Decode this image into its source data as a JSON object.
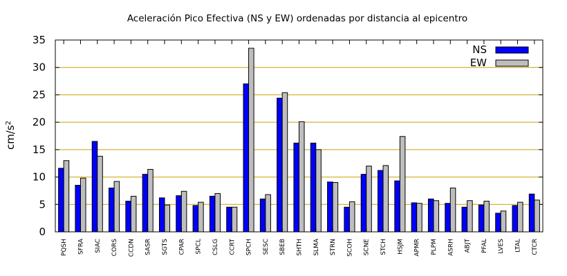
{
  "chart_data": {
    "type": "bar",
    "title": "Aceleración Pico Efectiva (NS y EW) ordenadas por distancia al epicentro",
    "xlabel": "",
    "ylabel_main": "cm/s",
    "ylabel_sup": "2",
    "ylim": [
      0,
      35
    ],
    "yticks": [
      "0",
      "5",
      "10",
      "15",
      "20",
      "25",
      "30",
      "35"
    ],
    "grid": "horizontal",
    "legend_position": "top-right",
    "categories": [
      "PQSH",
      "SFRA",
      "SIAC",
      "CORS",
      "CCDN",
      "SASR",
      "SGTS",
      "CPAR",
      "SPCL",
      "CSLG",
      "CCRT",
      "SPCH",
      "SESC",
      "SBEB",
      "SHTH",
      "SLMA",
      "STRN",
      "SCOH",
      "SCNE",
      "STCH",
      "HSJM",
      "APMR",
      "PLPM",
      "ASRH",
      "ABJT",
      "PFAL",
      "LVES",
      "LTAL",
      "CTCR"
    ],
    "series": [
      {
        "name": "NS",
        "color": "#0000ff",
        "values": [
          11.6,
          8.5,
          16.5,
          8.0,
          5.6,
          10.5,
          6.2,
          6.6,
          4.8,
          6.5,
          4.5,
          27.0,
          6.0,
          24.4,
          16.2,
          16.2,
          9.1,
          4.5,
          10.5,
          11.2,
          9.3,
          5.3,
          6.0,
          5.2,
          4.5,
          4.9,
          3.4,
          4.8,
          6.9
        ]
      },
      {
        "name": "EW",
        "color": "#bebebe",
        "values": [
          13.0,
          9.8,
          13.8,
          9.2,
          6.5,
          11.4,
          4.9,
          7.4,
          5.4,
          7.0,
          4.5,
          33.5,
          6.8,
          25.4,
          20.1,
          15.0,
          9.0,
          5.5,
          12.0,
          12.1,
          17.4,
          5.2,
          5.7,
          8.0,
          5.7,
          5.6,
          3.8,
          5.4,
          5.8
        ]
      }
    ]
  }
}
